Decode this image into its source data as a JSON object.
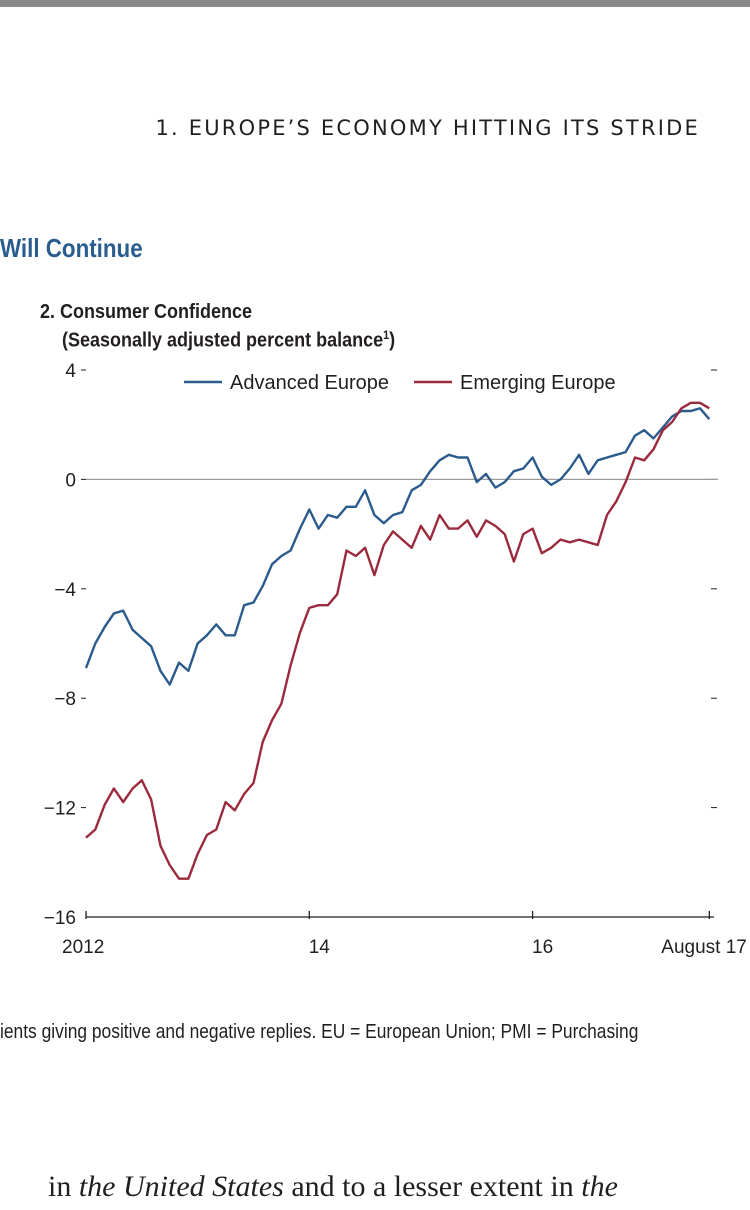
{
  "header": {
    "running_head": "1. EUROPE’S ECONOMY HITTING ITS STRIDE"
  },
  "section": {
    "title": "Will Continue"
  },
  "panel": {
    "title": "2. Consumer Confidence",
    "subtitle": "(Seasonally adjusted percent balance",
    "subtitle_sup": "1",
    "subtitle_close": ")"
  },
  "footnote": "ients giving positive and negative replies. EU = European Union; PMI = Purchasing",
  "body_text": {
    "part1": "in ",
    "italic1": "the United States",
    "part2": " and to a lesser extent in ",
    "italic2": "the"
  },
  "colors": {
    "advanced": "#2b5b8c",
    "emerging": "#9b2a3e",
    "axis": "#231f20",
    "zero_line": "#9a9a9a"
  },
  "chart_data": {
    "type": "line",
    "title": "2. Consumer Confidence",
    "subtitle": "(Seasonally adjusted percent balance1)",
    "ylim": [
      -16,
      4
    ],
    "yticks": [
      4,
      0,
      -4,
      -8,
      -12,
      -16
    ],
    "ytick_labels": [
      "4",
      "0",
      "−4",
      "−8",
      "−12",
      "−16"
    ],
    "xlim": [
      2012.0,
      2017.625
    ],
    "xticks": [
      2012,
      2014,
      2016,
      2017.583
    ],
    "xtick_labels": [
      "2012",
      "14",
      "16",
      "August 17"
    ],
    "legend": [
      "Advanced Europe",
      "Emerging Europe"
    ],
    "legend_position": "top",
    "series": [
      {
        "name": "Advanced Europe",
        "x": [
          2012.0,
          2012.083,
          2012.167,
          2012.25,
          2012.333,
          2012.417,
          2012.5,
          2012.583,
          2012.667,
          2012.75,
          2012.833,
          2012.917,
          2013.0,
          2013.083,
          2013.167,
          2013.25,
          2013.333,
          2013.417,
          2013.5,
          2013.583,
          2013.667,
          2013.75,
          2013.833,
          2013.917,
          2014.0,
          2014.083,
          2014.167,
          2014.25,
          2014.333,
          2014.417,
          2014.5,
          2014.583,
          2014.667,
          2014.75,
          2014.833,
          2014.917,
          2015.0,
          2015.083,
          2015.167,
          2015.25,
          2015.333,
          2015.417,
          2015.5,
          2015.583,
          2015.667,
          2015.75,
          2015.833,
          2015.917,
          2016.0,
          2016.083,
          2016.167,
          2016.25,
          2016.333,
          2016.417,
          2016.5,
          2016.583,
          2016.667,
          2016.75,
          2016.833,
          2016.917,
          2017.0,
          2017.083,
          2017.167,
          2017.25,
          2017.333,
          2017.417,
          2017.5,
          2017.583
        ],
        "values": [
          -6.9,
          -6.0,
          -5.4,
          -4.9,
          -4.8,
          -5.5,
          -5.8,
          -6.1,
          -7.0,
          -7.5,
          -6.7,
          -7.0,
          -6.0,
          -5.7,
          -5.3,
          -5.7,
          -5.7,
          -4.6,
          -4.5,
          -3.9,
          -3.1,
          -2.8,
          -2.6,
          -1.8,
          -1.1,
          -1.8,
          -1.3,
          -1.4,
          -1.0,
          -1.0,
          -0.4,
          -1.3,
          -1.6,
          -1.3,
          -1.2,
          -0.4,
          -0.2,
          0.3,
          0.7,
          0.9,
          0.8,
          0.8,
          -0.1,
          0.2,
          -0.3,
          -0.1,
          0.3,
          0.4,
          0.8,
          0.1,
          -0.2,
          0.0,
          0.4,
          0.9,
          0.2,
          0.7,
          0.8,
          0.9,
          1.0,
          1.6,
          1.8,
          1.5,
          1.9,
          2.3,
          2.5,
          2.5,
          2.6,
          2.2
        ]
      },
      {
        "name": "Emerging Europe",
        "x": [
          2012.0,
          2012.083,
          2012.167,
          2012.25,
          2012.333,
          2012.417,
          2012.5,
          2012.583,
          2012.667,
          2012.75,
          2012.833,
          2012.917,
          2013.0,
          2013.083,
          2013.167,
          2013.25,
          2013.333,
          2013.417,
          2013.5,
          2013.583,
          2013.667,
          2013.75,
          2013.833,
          2013.917,
          2014.0,
          2014.083,
          2014.167,
          2014.25,
          2014.333,
          2014.417,
          2014.5,
          2014.583,
          2014.667,
          2014.75,
          2014.833,
          2014.917,
          2015.0,
          2015.083,
          2015.167,
          2015.25,
          2015.333,
          2015.417,
          2015.5,
          2015.583,
          2015.667,
          2015.75,
          2015.833,
          2015.917,
          2016.0,
          2016.083,
          2016.167,
          2016.25,
          2016.333,
          2016.417,
          2016.5,
          2016.583,
          2016.667,
          2016.75,
          2016.833,
          2016.917,
          2017.0,
          2017.083,
          2017.167,
          2017.25,
          2017.333,
          2017.417,
          2017.5,
          2017.583
        ],
        "values": [
          -13.1,
          -12.8,
          -11.9,
          -11.3,
          -11.8,
          -11.3,
          -11.0,
          -11.7,
          -13.4,
          -14.1,
          -14.6,
          -14.6,
          -13.7,
          -13.0,
          -12.8,
          -11.8,
          -12.1,
          -11.5,
          -11.1,
          -9.6,
          -8.8,
          -8.2,
          -6.8,
          -5.6,
          -4.7,
          -4.6,
          -4.6,
          -4.2,
          -2.6,
          -2.8,
          -2.5,
          -3.5,
          -2.4,
          -1.9,
          -2.2,
          -2.5,
          -1.7,
          -2.2,
          -1.3,
          -1.8,
          -1.8,
          -1.5,
          -2.1,
          -1.5,
          -1.7,
          -2.0,
          -3.0,
          -2.0,
          -1.8,
          -2.7,
          -2.5,
          -2.2,
          -2.3,
          -2.2,
          -2.3,
          -2.4,
          -1.3,
          -0.8,
          -0.1,
          0.8,
          0.7,
          1.1,
          1.8,
          2.1,
          2.6,
          2.8,
          2.8,
          2.6
        ]
      }
    ]
  }
}
